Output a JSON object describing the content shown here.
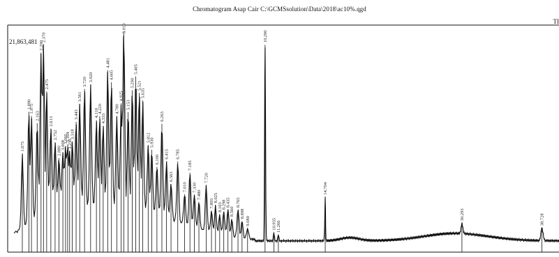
{
  "header": {
    "title": "Chromatogram Asap Cair C:\\GCMSsolution\\Data\\2018\\ac10%.qgd",
    "corner_label": "TI"
  },
  "chart_data": {
    "type": "line",
    "title": "Chromatogram Asap Cair C:\\GCMSsolution\\Data\\2018\\ac10%.qgd",
    "xlabel": "",
    "ylabel": "",
    "y_max_label": "21,863,481",
    "grid": false,
    "legend": "none",
    "peaks": [
      {
        "label": "1.675",
        "rel": 0.42
      },
      {
        "label": "1.890",
        "rel": 0.62
      },
      {
        "label": "1.975",
        "rel": 0.6
      },
      {
        "label": "2.163",
        "rel": 0.57
      },
      {
        "label": "2.290",
        "rel": 0.9
      },
      {
        "label": "2.370",
        "rel": 0.94
      },
      {
        "label": "2.475",
        "rel": 0.72
      },
      {
        "label": "2.613",
        "rel": 0.55
      },
      {
        "label": "2.752",
        "rel": 0.48
      },
      {
        "label": "2.880",
        "rel": 0.4
      },
      {
        "label": "3.008",
        "rel": 0.43
      },
      {
        "label": "3.095",
        "rel": 0.46
      },
      {
        "label": "3.164",
        "rel": 0.47
      },
      {
        "label": "3.230",
        "rel": 0.44
      },
      {
        "label": "3.318",
        "rel": 0.48
      },
      {
        "label": "3.443",
        "rel": 0.57
      },
      {
        "label": "3.561",
        "rel": 0.66
      },
      {
        "label": "3.720",
        "rel": 0.73
      },
      {
        "label": "3.920",
        "rel": 0.75
      },
      {
        "label": "4.110",
        "rel": 0.58
      },
      {
        "label": "4.220",
        "rel": 0.6
      },
      {
        "label": "4.333",
        "rel": 0.56
      },
      {
        "label": "4.481",
        "rel": 0.82
      },
      {
        "label": "4.605",
        "rel": 0.76
      },
      {
        "label": "4.780",
        "rel": 0.6
      },
      {
        "label": "4.925",
        "rel": 0.66
      },
      {
        "label": "5.010",
        "rel": 1.0
      },
      {
        "label": "5.153",
        "rel": 0.62
      },
      {
        "label": "5.290",
        "rel": 0.72
      },
      {
        "label": "5.405",
        "rel": 0.78
      },
      {
        "label": "5.521",
        "rel": 0.71
      },
      {
        "label": "5.635",
        "rel": 0.67
      },
      {
        "label": "5.812",
        "rel": 0.47
      },
      {
        "label": "5.930",
        "rel": 0.44
      },
      {
        "label": "6.100",
        "rel": 0.37
      },
      {
        "label": "6.263",
        "rel": 0.56
      },
      {
        "label": "6.415",
        "rel": 0.39
      },
      {
        "label": "6.563",
        "rel": 0.29
      },
      {
        "label": "6.785",
        "rel": 0.39
      },
      {
        "label": "7.010",
        "rel": 0.24
      },
      {
        "label": "7.185",
        "rel": 0.34
      },
      {
        "label": "7.330",
        "rel": 0.24
      },
      {
        "label": "7.480",
        "rel": 0.2
      },
      {
        "label": "7.720",
        "rel": 0.28
      },
      {
        "label": "7.893",
        "rel": 0.16
      },
      {
        "label": "8.025",
        "rel": 0.18
      },
      {
        "label": "8.163",
        "rel": 0.14
      },
      {
        "label": "8.298",
        "rel": 0.16
      },
      {
        "label": "8.435",
        "rel": 0.17
      },
      {
        "label": "8.560",
        "rel": 0.12
      },
      {
        "label": "8.765",
        "rel": 0.17
      },
      {
        "label": "8.898",
        "rel": 0.11
      },
      {
        "label": "9.080",
        "rel": 0.08
      },
      {
        "label": "10.290",
        "rel": 0.94
      },
      {
        "label": "10.935",
        "rel": 0.06
      },
      {
        "label": "11.266",
        "rel": 0.05
      },
      {
        "label": "14.704",
        "rel": 0.22
      },
      {
        "label": "30.293",
        "rel": 0.1
      },
      {
        "label": "38.728",
        "rel": 0.08
      }
    ]
  }
}
